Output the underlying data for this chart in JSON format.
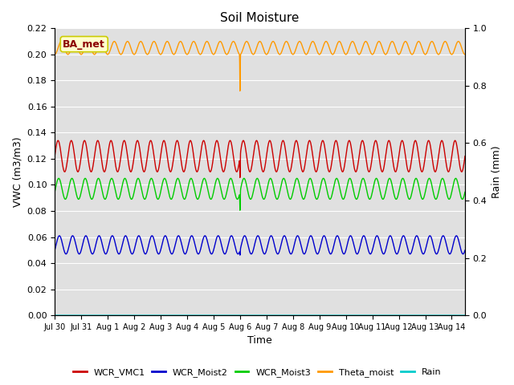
{
  "title": "Soil Moisture",
  "xlabel": "Time",
  "ylabel_left": "VWC (m3/m3)",
  "ylabel_right": "Rain (mm)",
  "ylim_left": [
    0.0,
    0.22
  ],
  "ylim_right": [
    0.0,
    1.0
  ],
  "background_color": "#ffffff",
  "plot_bg_color": "#e0e0e0",
  "grid_color": "#ffffff",
  "annotation_text": "BA_met",
  "annotation_bg": "#ffffcc",
  "annotation_border": "#cccc00",
  "annotation_text_color": "#8b0000",
  "series": {
    "WCR_VMC1": {
      "color": "#cc0000",
      "base": 0.122,
      "amp": 0.012,
      "period": 0.5,
      "phase": 0.0,
      "spike_day": 7.0,
      "spike_val": 0.105
    },
    "WCR_Moist2": {
      "color": "#0000cc",
      "base": 0.054,
      "amp": 0.007,
      "period": 0.5,
      "phase": 0.1,
      "spike_day": 7.0,
      "spike_val": 0.046
    },
    "WCR_Moist3": {
      "color": "#00cc00",
      "base": 0.097,
      "amp": 0.008,
      "period": 0.5,
      "phase": 0.05,
      "spike_day": 7.0,
      "spike_val": 0.08
    },
    "Theta_moist": {
      "color": "#ff9900",
      "base": 0.205,
      "amp": 0.005,
      "period": 0.5,
      "phase": 0.25,
      "spike_day": 7.0,
      "spike_val": 0.171
    },
    "Rain": {
      "color": "#00cccc",
      "base": 0.0,
      "amp": 0.0,
      "period": 0.5,
      "phase": 0.0,
      "spike_day": -1,
      "spike_val": 0.0
    }
  },
  "legend_colors": {
    "WCR_VMC1": "#cc0000",
    "WCR_Moist2": "#0000cc",
    "WCR_Moist3": "#00cc00",
    "Theta_moist": "#ff9900",
    "Rain": "#00cccc"
  },
  "start_day": 0,
  "end_day": 15.5,
  "num_points": 3000,
  "xtick_labels": [
    "Jul 30",
    "Jul 31",
    "Aug 1",
    "Aug 2",
    "Aug 3",
    "Aug 4",
    "Aug 5",
    "Aug 6",
    "Aug 7",
    "Aug 8",
    "Aug 9",
    "Aug 10",
    "Aug 11",
    "Aug 12",
    "Aug 13",
    "Aug 14"
  ],
  "xtick_positions": [
    0,
    1,
    2,
    3,
    4,
    5,
    6,
    7,
    8,
    9,
    10,
    11,
    12,
    13,
    14,
    15
  ]
}
